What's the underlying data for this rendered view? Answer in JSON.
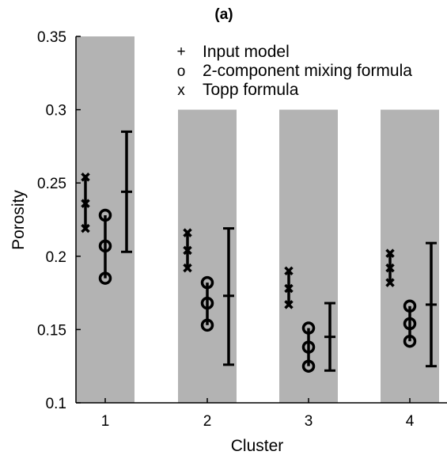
{
  "chart_data": {
    "type": "errorbar",
    "title": "(a)",
    "xlabel": "Cluster",
    "ylabel": "Porosity",
    "categories": [
      "1",
      "2",
      "3",
      "4"
    ],
    "ylim": [
      0.1,
      0.35
    ],
    "yticks": [
      "0.1",
      "0.15",
      "0.2",
      "0.25",
      "0.3",
      "0.35"
    ],
    "ytick_values": [
      0.1,
      0.15,
      0.2,
      0.25,
      0.3,
      0.35
    ],
    "shaded_bands": [
      {
        "category": "1",
        "top": 0.35
      },
      {
        "category": "2",
        "top": 0.3
      },
      {
        "category": "3",
        "top": 0.3
      },
      {
        "category": "4",
        "top": 0.3
      }
    ],
    "series": [
      {
        "name": "Topp formula",
        "marker": "x",
        "data": [
          {
            "category": "1",
            "low": 0.219,
            "mid": 0.236,
            "high": 0.254
          },
          {
            "category": "2",
            "low": 0.192,
            "mid": 0.204,
            "high": 0.216
          },
          {
            "category": "3",
            "low": 0.167,
            "mid": 0.178,
            "high": 0.19
          },
          {
            "category": "4",
            "low": 0.182,
            "mid": 0.192,
            "high": 0.202
          }
        ]
      },
      {
        "name": "2-component mixing formula",
        "marker": "o",
        "data": [
          {
            "category": "1",
            "low": 0.185,
            "mid": 0.207,
            "high": 0.228
          },
          {
            "category": "2",
            "low": 0.153,
            "mid": 0.168,
            "high": 0.182
          },
          {
            "category": "3",
            "low": 0.125,
            "mid": 0.138,
            "high": 0.151
          },
          {
            "category": "4",
            "low": 0.142,
            "mid": 0.154,
            "high": 0.166
          }
        ]
      },
      {
        "name": "Input model",
        "marker": "+",
        "data": [
          {
            "category": "1",
            "low": 0.203,
            "mid": 0.244,
            "high": 0.285
          },
          {
            "category": "2",
            "low": 0.126,
            "mid": 0.173,
            "high": 0.219
          },
          {
            "category": "3",
            "low": 0.122,
            "mid": 0.145,
            "high": 0.168
          },
          {
            "category": "4",
            "low": 0.125,
            "mid": 0.167,
            "high": 0.209
          }
        ]
      }
    ],
    "legend": {
      "placement": "top",
      "entries": [
        {
          "symbol": "+",
          "label": "Input model"
        },
        {
          "symbol": "o",
          "label": "2-component mixing formula"
        },
        {
          "symbol": "x",
          "label": "Topp formula"
        }
      ]
    },
    "colors": {
      "band": "#b3b3b3",
      "ink": "#000000"
    }
  }
}
